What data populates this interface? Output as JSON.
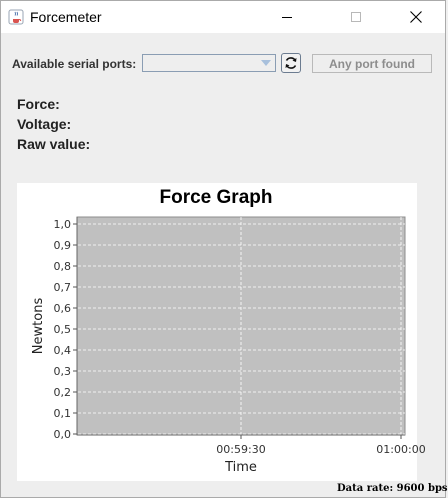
{
  "window": {
    "title": "Forcemeter",
    "icon": "java-icon"
  },
  "toolbar": {
    "ports_label": "Available serial ports:",
    "port_selected": "",
    "refresh_icon": "refresh-icon",
    "connect_label": "Any port found"
  },
  "readouts": {
    "force_label": "Force:",
    "voltage_label": "Voltage:",
    "raw_label": "Raw value:"
  },
  "chart_data": {
    "type": "line",
    "title": "Force Graph",
    "xlabel": "Time",
    "ylabel": "Newtons",
    "yticks": [
      "0,0",
      "0,1",
      "0,2",
      "0,3",
      "0,4",
      "0,5",
      "0,6",
      "0,7",
      "0,8",
      "0,9",
      "1,0"
    ],
    "xticks": [
      "00:59:30",
      "01:00:00"
    ],
    "ylim": [
      0,
      1.0
    ],
    "series": [],
    "grid": true,
    "plot_background": "#c0c0c0"
  },
  "status": {
    "data_rate": "Data rate: 9600 bps"
  },
  "colors": {
    "window_bg": "#eeeeee",
    "plot_bg": "#c0c0c0",
    "grid": "#ffffff"
  }
}
